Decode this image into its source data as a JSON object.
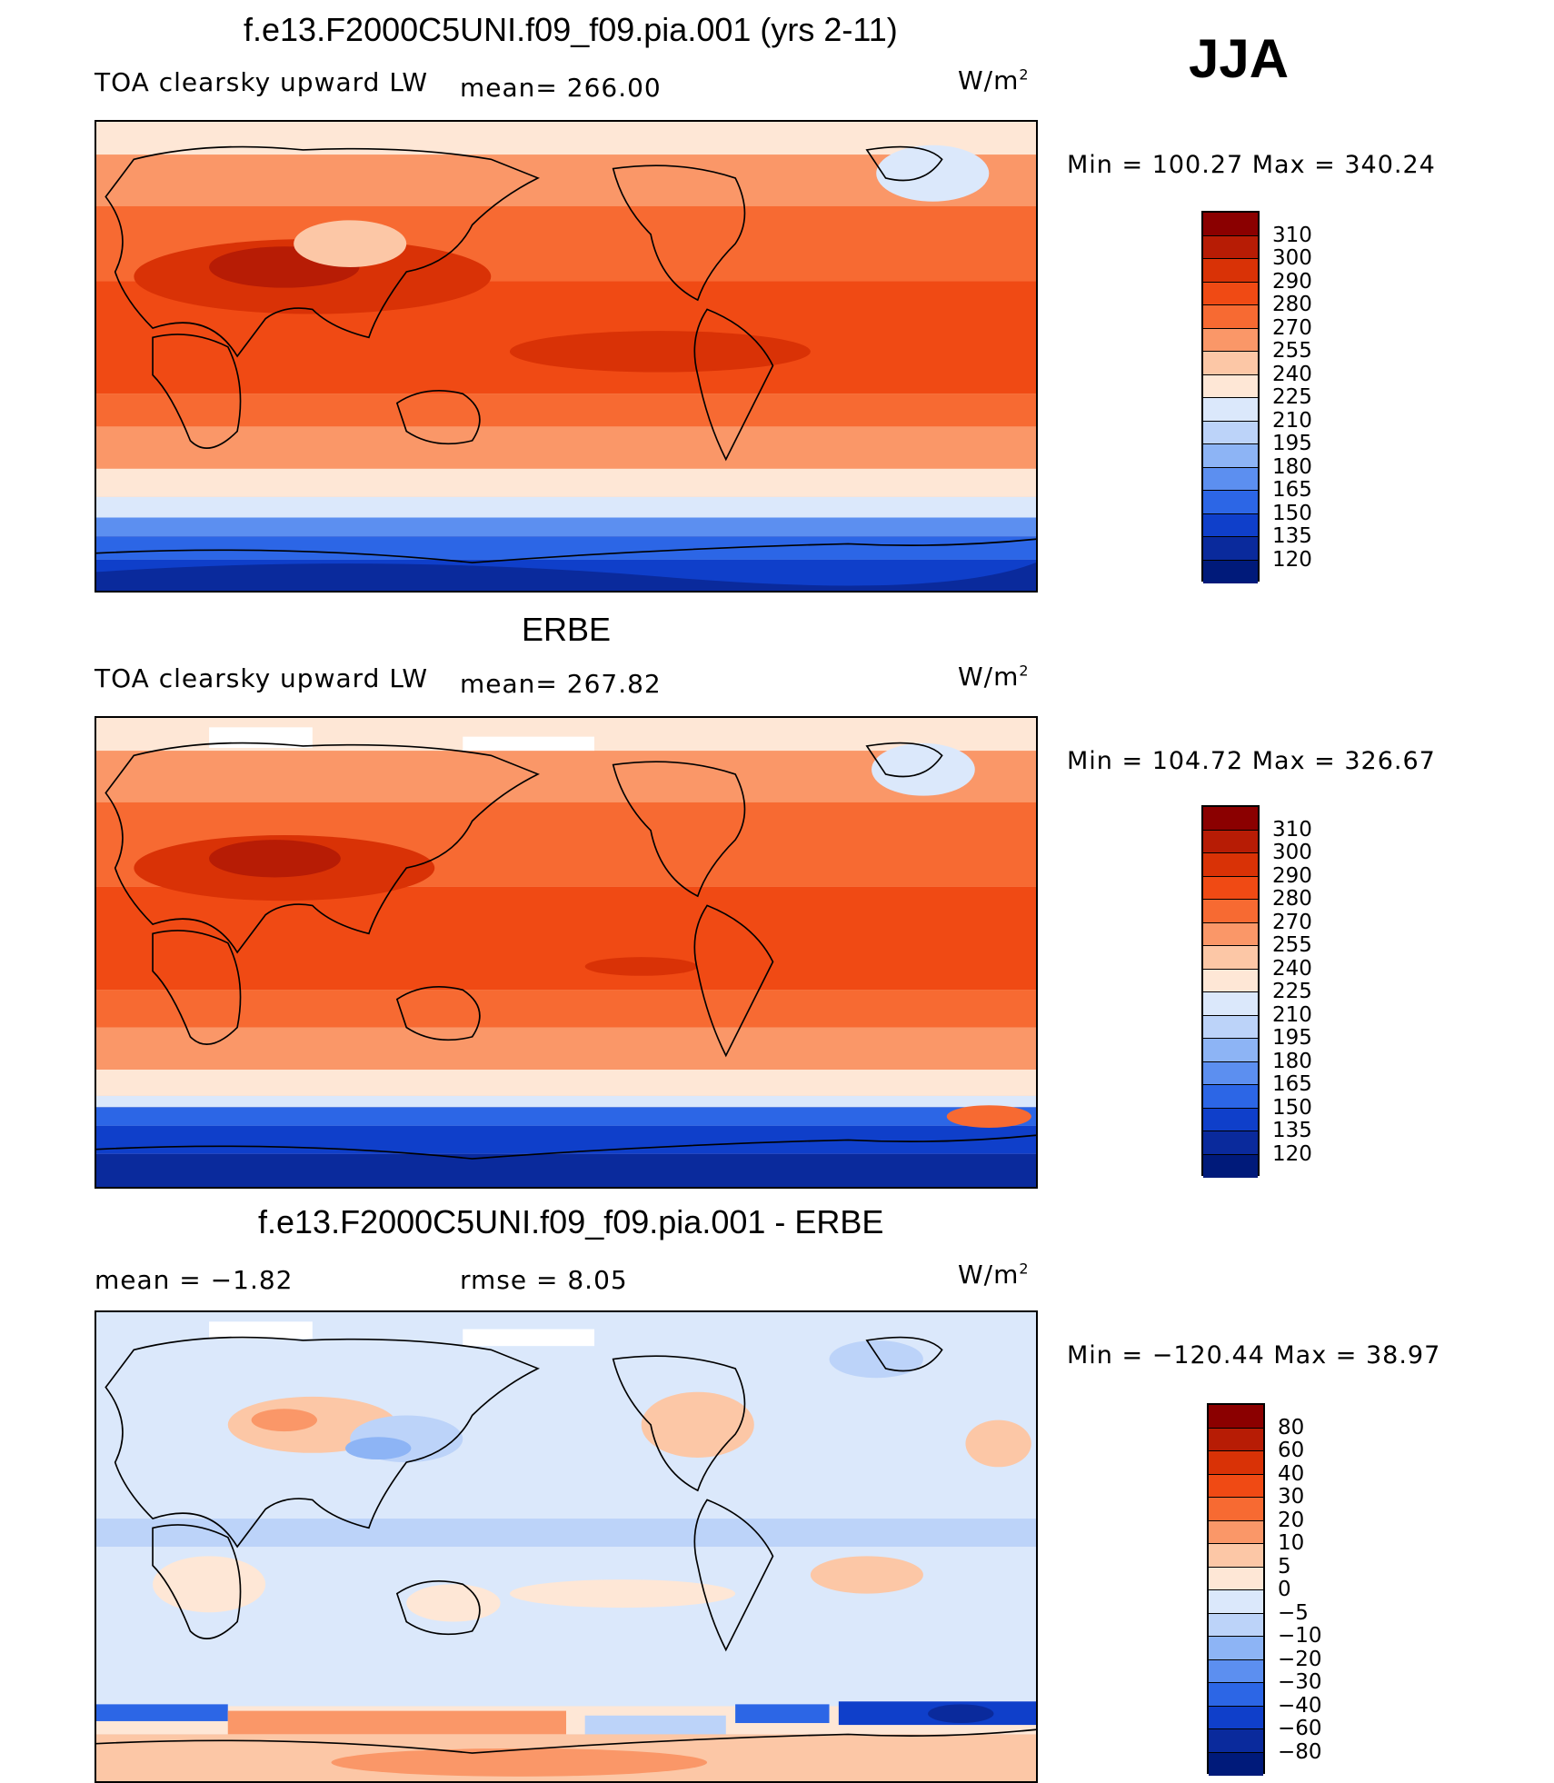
{
  "season": "JJA",
  "panels": [
    {
      "title": "f.e13.F2000C5UNI.f09_f09.pia.001 (yrs 2-11)",
      "variable": "TOA clearsky upward LW",
      "left_stat": "",
      "mean_text": "mean=  266.00",
      "rmse_text": "",
      "units_base": "W/m",
      "units_exp": "2",
      "minmax": "Min  =  100.27  Max  =  340.24",
      "colorbar": {
        "labels": [
          "310",
          "300",
          "290",
          "280",
          "270",
          "255",
          "240",
          "225",
          "210",
          "195",
          "180",
          "165",
          "150",
          "135",
          "120"
        ],
        "colors": [
          "#8b0000",
          "#b71c05",
          "#d93206",
          "#f04a14",
          "#f76a32",
          "#fa9768",
          "#fcc7a6",
          "#fee7d6",
          "#dbe8fb",
          "#bcd3f9",
          "#8db4f5",
          "#5c8ff0",
          "#2c66e6",
          "#0f3fca",
          "#0a2a9c",
          "#001a7a"
        ]
      }
    },
    {
      "title": "ERBE",
      "variable": "TOA clearsky upward LW",
      "left_stat": "",
      "mean_text": "mean=  267.82",
      "rmse_text": "",
      "units_base": "W/m",
      "units_exp": "2",
      "minmax": "Min  =  104.72  Max  =  326.67",
      "colorbar": {
        "labels": [
          "310",
          "300",
          "290",
          "280",
          "270",
          "255",
          "240",
          "225",
          "210",
          "195",
          "180",
          "165",
          "150",
          "135",
          "120"
        ],
        "colors": [
          "#8b0000",
          "#b71c05",
          "#d93206",
          "#f04a14",
          "#f76a32",
          "#fa9768",
          "#fcc7a6",
          "#fee7d6",
          "#dbe8fb",
          "#bcd3f9",
          "#8db4f5",
          "#5c8ff0",
          "#2c66e6",
          "#0f3fca",
          "#0a2a9c",
          "#001a7a"
        ]
      }
    },
    {
      "title": "f.e13.F2000C5UNI.f09_f09.pia.001 - ERBE",
      "variable": "",
      "left_stat": "mean  =    −1.82",
      "mean_text": "",
      "rmse_text": "rmse  =     8.05",
      "units_base": "W/m",
      "units_exp": "2",
      "minmax": "Min  =  −120.44  Max  =    38.97",
      "colorbar": {
        "labels": [
          "80",
          "60",
          "40",
          "30",
          "20",
          "10",
          "5",
          "0",
          "−5",
          "−10",
          "−20",
          "−30",
          "−40",
          "−60",
          "−80"
        ],
        "colors": [
          "#8b0000",
          "#b71c05",
          "#d93206",
          "#f04a14",
          "#f76a32",
          "#fa9768",
          "#fcc7a6",
          "#fee7d6",
          "#dbe8fb",
          "#bcd3f9",
          "#8db4f5",
          "#5c8ff0",
          "#2c66e6",
          "#0f3fca",
          "#0a2a9c",
          "#001a7a"
        ]
      }
    }
  ]
}
